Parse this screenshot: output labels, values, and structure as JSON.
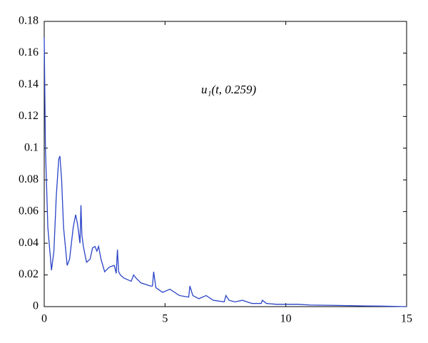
{
  "chart_data": {
    "type": "line",
    "annotation": "u₁(t, 0.259)",
    "x": [
      0,
      0.05,
      0.15,
      0.3,
      0.4,
      0.5,
      0.6,
      0.65,
      0.72,
      0.8,
      0.95,
      1.05,
      1.2,
      1.3,
      1.38,
      1.48,
      1.52,
      1.56,
      1.62,
      1.75,
      1.9,
      2.0,
      2.1,
      2.18,
      2.25,
      2.35,
      2.5,
      2.7,
      2.9,
      2.98,
      3.03,
      3.08,
      3.15,
      3.3,
      3.6,
      3.7,
      3.8,
      4.0,
      4.4,
      4.48,
      4.53,
      4.62,
      4.9,
      5.2,
      5.6,
      5.98,
      6.03,
      6.15,
      6.4,
      6.7,
      7.0,
      7.45,
      7.52,
      7.65,
      7.9,
      8.2,
      8.6,
      8.98,
      9.03,
      9.2,
      9.6,
      10.0,
      10.5,
      11.0,
      12.0,
      13.0,
      14.0,
      15.0
    ],
    "series": [
      {
        "color": "#2a44c8",
        "values": [
          0.17,
          0.1,
          0.05,
          0.023,
          0.035,
          0.07,
          0.093,
          0.095,
          0.08,
          0.05,
          0.026,
          0.03,
          0.05,
          0.058,
          0.052,
          0.04,
          0.064,
          0.045,
          0.038,
          0.028,
          0.03,
          0.037,
          0.038,
          0.035,
          0.038,
          0.03,
          0.022,
          0.025,
          0.026,
          0.021,
          0.036,
          0.022,
          0.02,
          0.018,
          0.016,
          0.02,
          0.018,
          0.015,
          0.013,
          0.013,
          0.022,
          0.012,
          0.009,
          0.011,
          0.007,
          0.006,
          0.013,
          0.007,
          0.005,
          0.007,
          0.004,
          0.003,
          0.007,
          0.004,
          0.003,
          0.004,
          0.002,
          0.002,
          0.004,
          0.002,
          0.0015,
          0.0015,
          0.0015,
          0.001,
          0.0008,
          0.0005,
          0.0003,
          0
        ]
      }
    ],
    "xlim": [
      0,
      15
    ],
    "ylim": [
      0,
      0.18
    ],
    "xticks": [
      0,
      5,
      10,
      15
    ],
    "yticks": [
      0,
      0.02,
      0.04,
      0.06,
      0.08,
      0.1,
      0.12,
      0.14,
      0.16,
      0.18
    ]
  }
}
